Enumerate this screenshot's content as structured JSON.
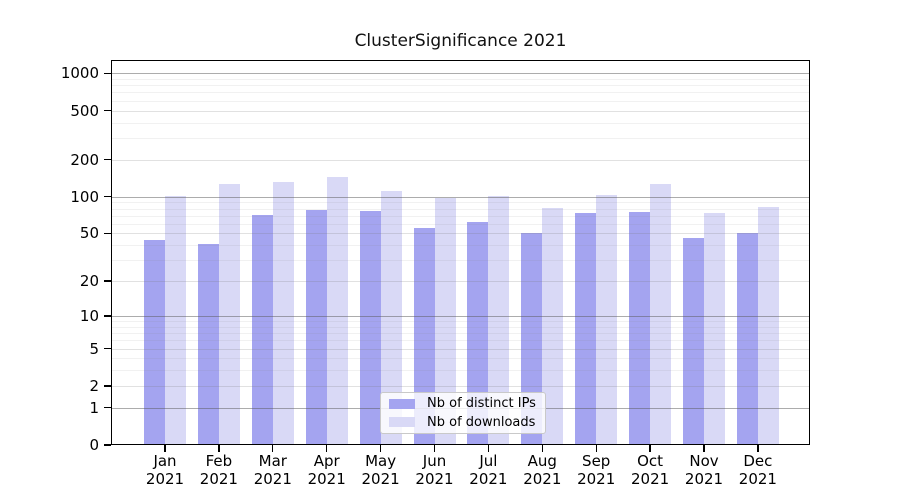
{
  "title": "ClusterSignificance 2021",
  "colors": {
    "distinct_ips_bar": "#a4a4f0",
    "downloads_bar": "#d9d9f6"
  },
  "chart_data": {
    "type": "bar",
    "title": "ClusterSignificance 2021",
    "categories": [
      "Jan 2021",
      "Feb 2021",
      "Mar 2021",
      "Apr 2021",
      "May 2021",
      "Jun 2021",
      "Jul 2021",
      "Aug 2021",
      "Sep 2021",
      "Oct 2021",
      "Nov 2021",
      "Dec 2021"
    ],
    "series": [
      {
        "name": "Nb of distinct IPs",
        "color": "#a4a4f0",
        "values": [
          44,
          41,
          71,
          78,
          76,
          55,
          62,
          50,
          73,
          75,
          46,
          50
        ]
      },
      {
        "name": "Nb of downloads",
        "color": "#d9d9f6",
        "values": [
          101,
          127,
          132,
          145,
          111,
          98,
          101,
          81,
          104,
          127,
          73,
          83
        ]
      }
    ],
    "xlabel": "",
    "ylabel": "",
    "y_scale": "log1p",
    "y_ticks": [
      0,
      1,
      2,
      5,
      10,
      20,
      50,
      100,
      200,
      500,
      1000
    ],
    "ylim": [
      0,
      1280
    ],
    "grid": true,
    "legend_position": "inside-bottom-center"
  },
  "legend": {
    "items": [
      {
        "label": "Nb of distinct IPs"
      },
      {
        "label": "Nb of downloads"
      }
    ]
  }
}
